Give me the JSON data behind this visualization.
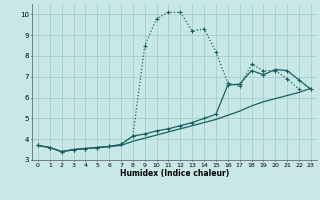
{
  "xlabel": "Humidex (Indice chaleur)",
  "xlim": [
    -0.5,
    23.5
  ],
  "ylim": [
    3.0,
    10.5
  ],
  "bg_color": "#c8e8e8",
  "grid_color": "#a0c8c8",
  "line_color": "#1a5f5f",
  "line1_x": [
    0,
    1,
    2,
    3,
    4,
    5,
    6,
    7,
    8,
    9,
    10,
    11,
    12,
    13,
    14,
    15,
    16,
    17,
    18,
    19,
    20,
    21,
    22,
    23
  ],
  "line1_y": [
    3.7,
    3.6,
    3.4,
    3.5,
    3.55,
    3.6,
    3.65,
    3.7,
    3.9,
    4.05,
    4.2,
    4.35,
    4.5,
    4.65,
    4.8,
    4.95,
    5.15,
    5.35,
    5.6,
    5.8,
    5.95,
    6.1,
    6.25,
    6.45
  ],
  "line2_x": [
    0,
    1,
    2,
    3,
    4,
    5,
    6,
    7,
    8,
    9,
    10,
    11,
    12,
    13,
    14,
    15,
    16,
    17,
    18,
    19,
    20,
    21,
    22,
    23
  ],
  "line2_y": [
    3.7,
    3.6,
    3.4,
    3.5,
    3.55,
    3.6,
    3.65,
    3.75,
    4.15,
    4.25,
    4.4,
    4.5,
    4.65,
    4.8,
    5.0,
    5.2,
    6.6,
    6.65,
    7.3,
    7.1,
    7.35,
    7.3,
    6.85,
    6.4
  ],
  "line3_x": [
    0,
    1,
    2,
    3,
    4,
    5,
    6,
    7,
    8,
    9,
    10,
    11,
    12,
    13,
    14,
    15,
    16,
    17,
    18,
    19,
    20,
    21,
    22,
    23
  ],
  "line3_y": [
    3.7,
    3.6,
    3.4,
    3.5,
    3.55,
    3.6,
    3.65,
    3.75,
    4.15,
    8.5,
    9.8,
    10.1,
    10.1,
    9.2,
    9.3,
    8.2,
    6.7,
    6.55,
    7.6,
    7.3,
    7.3,
    6.9,
    6.4,
    null
  ],
  "yticks": [
    3,
    4,
    5,
    6,
    7,
    8,
    9,
    10
  ],
  "xticks": [
    0,
    1,
    2,
    3,
    4,
    5,
    6,
    7,
    8,
    9,
    10,
    11,
    12,
    13,
    14,
    15,
    16,
    17,
    18,
    19,
    20,
    21,
    22,
    23
  ]
}
